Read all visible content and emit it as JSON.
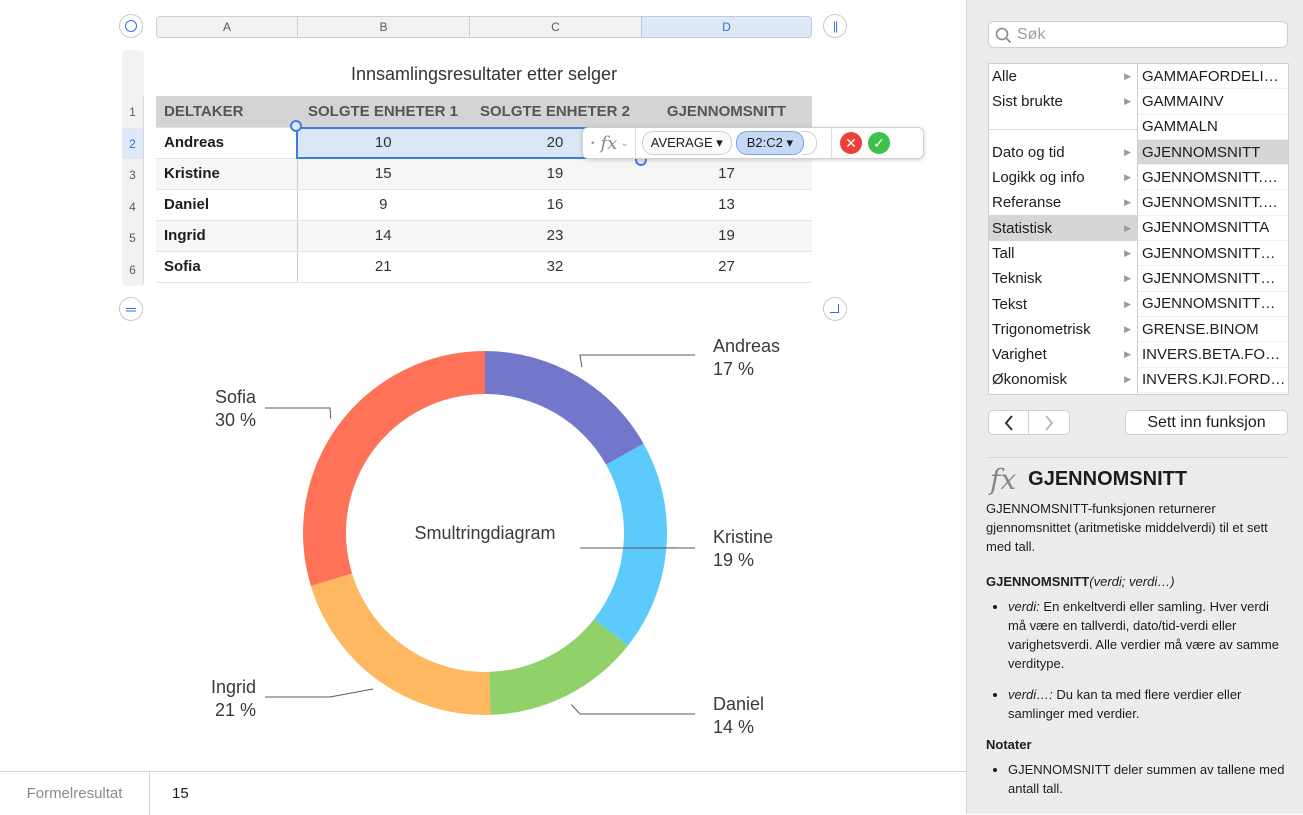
{
  "sheet": {
    "columns": [
      "A",
      "B",
      "C",
      "D"
    ],
    "rows": [
      "1",
      "2",
      "3",
      "4",
      "5",
      "6"
    ],
    "selected_column": "D",
    "selected_row": "2",
    "title": "Innsamlingsresultater etter selger",
    "headers": [
      "DELTAKER",
      "SOLGTE ENHETER 1",
      "SOLGTE ENHETER 2",
      "GJENNOMSNITT"
    ],
    "data": [
      [
        "Andreas",
        "10",
        "20",
        ""
      ],
      [
        "Kristine",
        "15",
        "19",
        "17"
      ],
      [
        "Daniel",
        "9",
        "16",
        "13"
      ],
      [
        "Ingrid",
        "14",
        "23",
        "19"
      ],
      [
        "Sofia",
        "21",
        "32",
        "27"
      ]
    ]
  },
  "formula": {
    "fx_label": "fx",
    "function_token": "AVERAGE ▾",
    "range_token": "B2:C2 ▾",
    "cancel_icon": "close-icon",
    "accept_icon": "checkmark-icon"
  },
  "chart_data": {
    "type": "donut",
    "title": "Smultringdiagram",
    "categories": [
      "Andreas",
      "Kristine",
      "Daniel",
      "Ingrid",
      "Sofia"
    ],
    "values": [
      17,
      19,
      14,
      21,
      30
    ],
    "labels": [
      "17 %",
      "19 %",
      "14 %",
      "21 %",
      "30 %"
    ],
    "colors": [
      "#7277cb",
      "#5ccbfb",
      "#90d16a",
      "#feb861",
      "#fe7358"
    ]
  },
  "status": {
    "label": "Formelresultat",
    "value": "15"
  },
  "browser": {
    "search_placeholder": "Søk",
    "categories_top": [
      "Alle",
      "Sist brukte"
    ],
    "categories": [
      "Dato og tid",
      "Logikk og info",
      "Referanse",
      "Statistisk",
      "Tall",
      "Teknisk",
      "Tekst",
      "Trigonometrisk",
      "Varighet",
      "Økonomisk"
    ],
    "selected_category": "Statistisk",
    "functions": [
      "GAMMAFORDELI…",
      "GAMMAINV",
      "GAMMALN",
      "GJENNOMSNITT",
      "GJENNOMSNITT.…",
      "GJENNOMSNITT.…",
      "GJENNOMSNITTA",
      "GJENNOMSNITT…",
      "GJENNOMSNITT…",
      "GJENNOMSNITT…",
      "GRENSE.BINOM",
      "INVERS.BETA.FO…",
      "INVERS.KJI.FORD…"
    ],
    "selected_function": "GJENNOMSNITT",
    "back_icon": "chevron-left-icon",
    "forward_icon": "chevron-right-icon",
    "insert_label": "Sett inn funksjon"
  },
  "help": {
    "fx": "fx",
    "title": "GJENNOMSNITT",
    "description": "GJENNOMSNITT-funksjonen returnerer gjennomsnittet (aritmetiske middelverdi) til et sett med tall.",
    "syntax_name": "GJENNOMSNITT",
    "syntax_args": "(verdi; verdi…)",
    "arg1_name": "verdi:",
    "arg1_text": " En enkeltverdi eller samling. Hver verdi må være en tallverdi, dato/tid-verdi eller varighetsverdi. Alle verdier må være av samme verditype.",
    "arg2_name": "verdi…:",
    "arg2_text": " Du kan ta med flere verdier eller samlinger med verdier.",
    "notes_title": "Notater",
    "note1": "GJENNOMSNITT deler summen av tallene med antall tall."
  }
}
